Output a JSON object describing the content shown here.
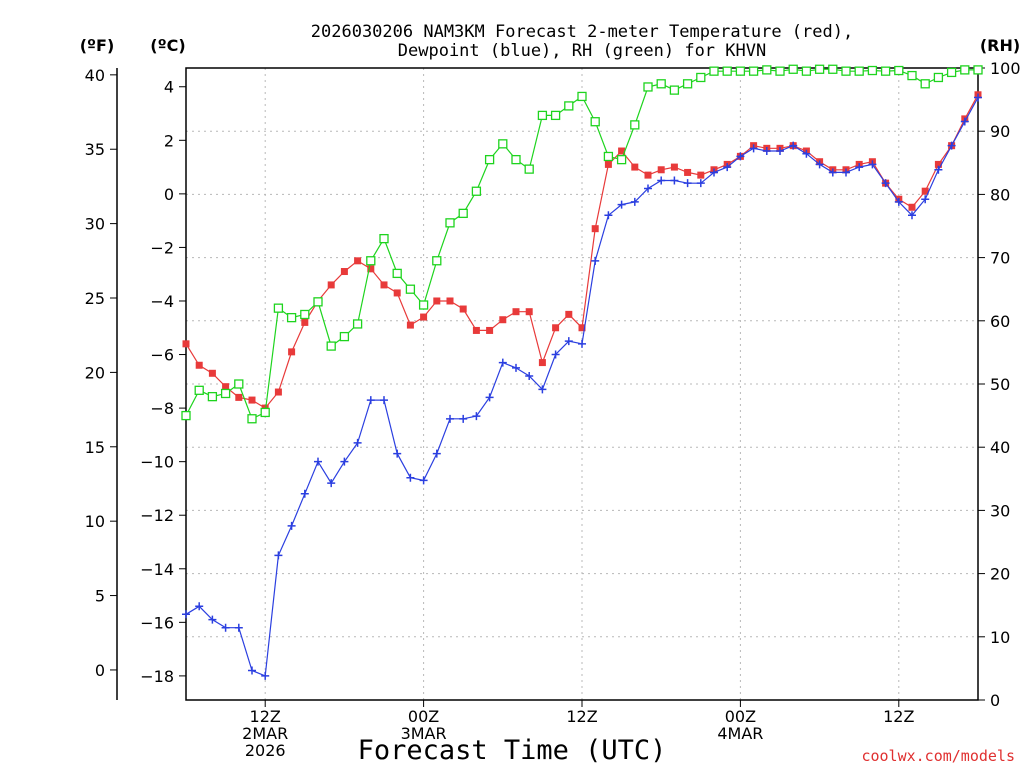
{
  "chart_data": {
    "type": "line",
    "title": "2026030206 NAM3KM Forecast 2-meter Temperature (red),",
    "subtitle": "Dewpoint (blue), RH (green) for KHVN",
    "xlabel": "Forecast Time (UTC)",
    "watermark": "coolwx.com/models",
    "axes": {
      "left_outer_unit": "(ºF)",
      "left_inner_unit": "(ºC)",
      "right_unit": "(RH)",
      "celsius_ylim": [
        -18.9,
        4.7
      ],
      "fahrenheit_ylim": [
        -2.02,
        40.46
      ],
      "rh_ylim": [
        0,
        100
      ],
      "celsius_ticks": [
        -18,
        -16,
        -14,
        -12,
        -10,
        -8,
        -6,
        -4,
        -2,
        0,
        2,
        4
      ],
      "fahrenheit_ticks": [
        0,
        5,
        10,
        15,
        20,
        25,
        30,
        35,
        40
      ],
      "rh_ticks": [
        0,
        10,
        20,
        30,
        40,
        50,
        60,
        70,
        80,
        90,
        100
      ],
      "grid": true,
      "x_range_hours": [
        0,
        60
      ],
      "x_ticks": [
        {
          "hour": 6,
          "lines": [
            "12Z",
            "2MAR",
            "2026"
          ]
        },
        {
          "hour": 18,
          "lines": [
            "00Z",
            "3MAR"
          ]
        },
        {
          "hour": 30,
          "lines": [
            "12Z"
          ]
        },
        {
          "hour": 42,
          "lines": [
            "00Z",
            "4MAR"
          ]
        },
        {
          "hour": 54,
          "lines": [
            "12Z"
          ]
        }
      ]
    },
    "series": [
      {
        "axis": "celsius",
        "color": "#e83a3a",
        "marker": "filled-square",
        "values": [
          -5.6,
          -6.4,
          -6.7,
          -7.2,
          -7.6,
          -7.7,
          -8.0,
          -7.4,
          -5.9,
          -4.8,
          -4.0,
          -3.4,
          -2.9,
          -2.5,
          -2.8,
          -3.4,
          -3.7,
          -4.9,
          -4.6,
          -4.0,
          -4.0,
          -4.3,
          -5.1,
          -5.1,
          -4.7,
          -4.4,
          -4.4,
          -6.3,
          -5.0,
          -4.5,
          -5.0,
          -1.3,
          1.1,
          1.6,
          1.0,
          0.7,
          0.9,
          1.0,
          0.8,
          0.7,
          0.9,
          1.1,
          1.4,
          1.8,
          1.7,
          1.7,
          1.8,
          1.6,
          1.2,
          0.9,
          0.9,
          1.1,
          1.2,
          0.4,
          -0.2,
          -0.5,
          0.1,
          1.1,
          1.8,
          2.8,
          3.7
        ]
      },
      {
        "axis": "celsius",
        "color": "#2b3fe0",
        "marker": "plus",
        "values": [
          -15.7,
          -15.4,
          -15.9,
          -16.2,
          -16.2,
          -17.8,
          -18.0,
          -13.5,
          -12.4,
          -11.2,
          -10.0,
          -10.8,
          -10.0,
          -9.3,
          -7.7,
          -7.7,
          -9.7,
          -10.6,
          -10.7,
          -9.7,
          -8.4,
          -8.4,
          -8.3,
          -7.6,
          -6.3,
          -6.5,
          -6.8,
          -7.3,
          -6.0,
          -5.5,
          -5.6,
          -2.5,
          -0.8,
          -0.4,
          -0.3,
          0.2,
          0.5,
          0.5,
          0.4,
          0.4,
          0.8,
          1.0,
          1.4,
          1.7,
          1.6,
          1.6,
          1.8,
          1.5,
          1.1,
          0.8,
          0.8,
          1.0,
          1.1,
          0.4,
          -0.3,
          -0.8,
          -0.2,
          0.9,
          1.8,
          2.7,
          3.6
        ]
      },
      {
        "axis": "rh",
        "color": "#1ed41e",
        "marker": "open-square",
        "values": [
          45,
          49,
          48,
          48.5,
          50,
          44.5,
          45.5,
          62,
          60.5,
          61,
          63,
          56,
          57.5,
          59.5,
          69.5,
          73,
          67.5,
          65,
          62.5,
          69.5,
          75.5,
          77,
          80.5,
          85.5,
          88,
          85.5,
          84,
          92.5,
          92.5,
          94,
          95.5,
          91.5,
          86,
          85.5,
          91,
          97,
          97.5,
          96.5,
          97.5,
          98.5,
          99.5,
          99.5,
          99.5,
          99.5,
          99.7,
          99.5,
          99.8,
          99.5,
          99.8,
          99.8,
          99.5,
          99.5,
          99.6,
          99.5,
          99.6,
          98.8,
          97.5,
          98.5,
          99.3,
          99.7,
          99.7
        ]
      }
    ]
  }
}
